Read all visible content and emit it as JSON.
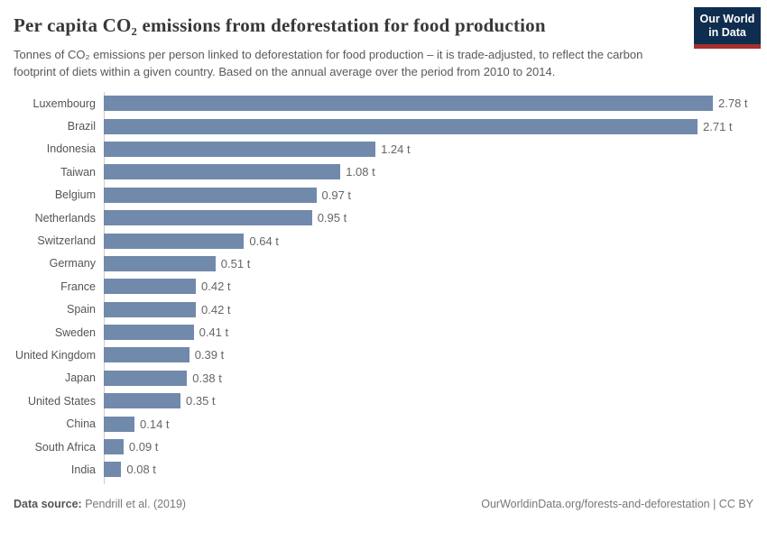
{
  "header": {
    "title": "Per capita CO₂ emissions from deforestation for food production",
    "subtitle": "Tonnes of CO₂ emissions per person linked to deforestation for food production – it is trade-adjusted, to reflect the carbon footprint of diets within a given country. Based on the annual average over the period from 2010 to 2014.",
    "logo": {
      "line1": "Our World",
      "line2": "in Data"
    }
  },
  "chart_data": {
    "type": "bar",
    "orientation": "horizontal",
    "title": "Per capita CO₂ emissions from deforestation for food production",
    "xlabel": "",
    "ylabel": "",
    "xlim": [
      0,
      2.78
    ],
    "grid": false,
    "legend": false,
    "unit": "t",
    "categories": [
      "Luxembourg",
      "Brazil",
      "Indonesia",
      "Taiwan",
      "Belgium",
      "Netherlands",
      "Switzerland",
      "Germany",
      "France",
      "Spain",
      "Sweden",
      "United Kingdom",
      "Japan",
      "United States",
      "China",
      "South Africa",
      "India"
    ],
    "values": [
      2.78,
      2.71,
      1.24,
      1.08,
      0.97,
      0.95,
      0.64,
      0.51,
      0.42,
      0.42,
      0.41,
      0.39,
      0.38,
      0.35,
      0.14,
      0.09,
      0.08
    ],
    "value_labels": [
      "2.78 t",
      "2.71 t",
      "1.24 t",
      "1.08 t",
      "0.97 t",
      "0.95 t",
      "0.64 t",
      "0.51 t",
      "0.42 t",
      "0.42 t",
      "0.41 t",
      "0.39 t",
      "0.38 t",
      "0.35 t",
      "0.14 t",
      "0.09 t",
      "0.08 t"
    ]
  },
  "footer": {
    "datasource_label": "Data source:",
    "datasource_value": " Pendrill et al. (2019)",
    "link_text": "OurWorldinData.org/forests-and-deforestation | CC BY"
  },
  "colors": {
    "bar": "#7189ab",
    "logo_navy": "#0f2d4f",
    "logo_red": "#a5302d",
    "axis": "#cccccc"
  }
}
